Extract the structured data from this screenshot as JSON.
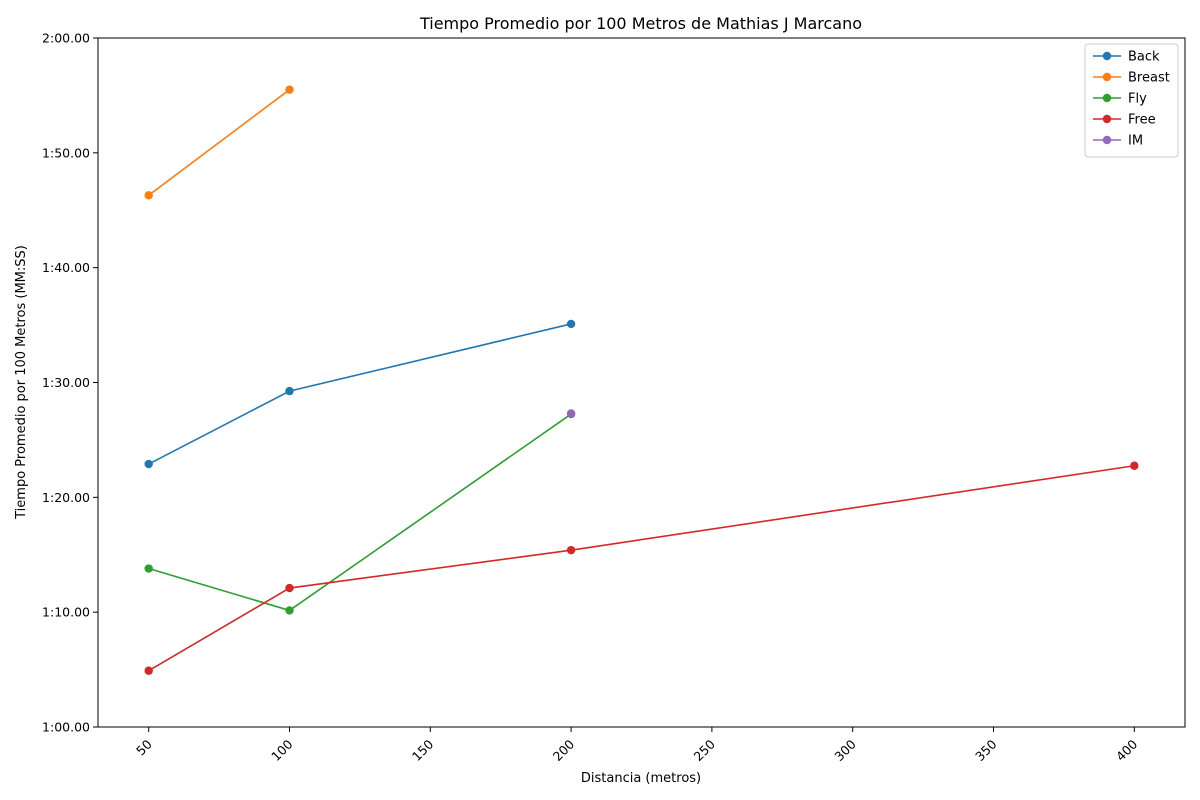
{
  "chart_data": {
    "type": "line",
    "title": "Tiempo Promedio por 100 Metros de Mathias J Marcano",
    "xlabel": "Distancia (metros)",
    "ylabel": "Tiempo Promedio por 100 Metros (MM:SS)",
    "xlim": [
      32,
      418
    ],
    "ylim": [
      60,
      120
    ],
    "x_ticks": [
      50,
      100,
      150,
      200,
      250,
      300,
      350,
      400
    ],
    "x_tick_labels": [
      "50",
      "100",
      "150",
      "200",
      "250",
      "300",
      "350",
      "400"
    ],
    "y_ticks": [
      60,
      70,
      80,
      90,
      100,
      110,
      120
    ],
    "y_tick_labels": [
      "1:00.00",
      "1:10.00",
      "1:20.00",
      "1:30.00",
      "1:40.00",
      "1:50.00",
      "2:00.00"
    ],
    "grid": false,
    "legend_position": "top-right",
    "series": [
      {
        "name": "Back",
        "color": "#1f77b4",
        "x": [
          50,
          100,
          200
        ],
        "y": [
          82.9,
          89.25,
          95.1
        ]
      },
      {
        "name": "Breast",
        "color": "#ff7f0e",
        "x": [
          50,
          100
        ],
        "y": [
          106.3,
          115.5
        ]
      },
      {
        "name": "Fly",
        "color": "#2ca02c",
        "x": [
          50,
          100,
          200
        ],
        "y": [
          73.8,
          70.15,
          87.25
        ]
      },
      {
        "name": "Free",
        "color": "#d62728",
        "x": [
          50,
          100,
          200,
          400
        ],
        "y": [
          64.9,
          72.1,
          75.4,
          82.75
        ]
      },
      {
        "name": "IM",
        "color": "#9467bd",
        "x": [
          200
        ],
        "y": [
          87.3
        ]
      }
    ]
  }
}
